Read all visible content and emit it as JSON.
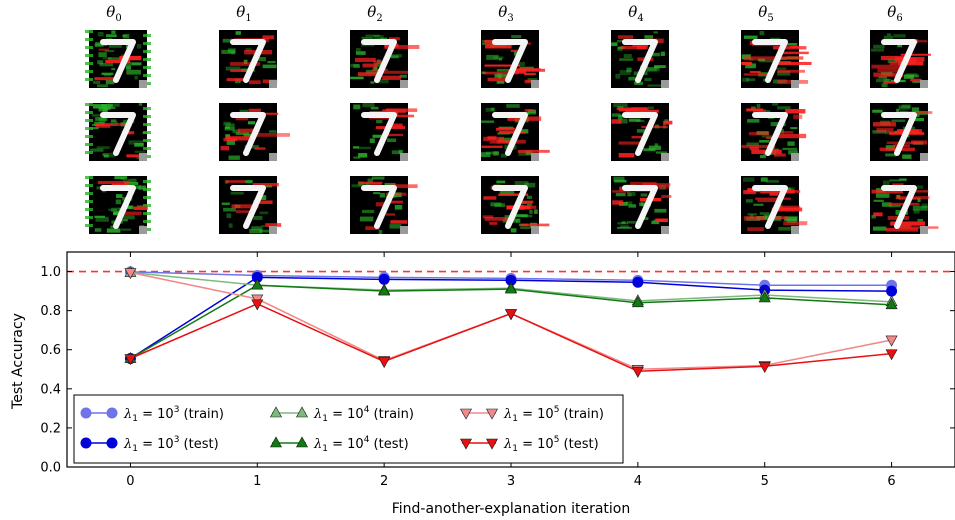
{
  "thumbnails": {
    "columns": [
      "θ0",
      "θ1",
      "θ2",
      "θ3",
      "θ4",
      "θ5",
      "θ6"
    ],
    "column_symbol": "θ",
    "column_subscripts": [
      "0",
      "1",
      "2",
      "3",
      "4",
      "5",
      "6"
    ],
    "rows": 3,
    "digit": "7",
    "description_colors": {
      "background": "#000000",
      "digit": "#f4f4f4",
      "positive": "#2bb52b",
      "negative": "#ff2020",
      "marker": "#9a9a9a"
    },
    "overlay_intensity": [
      [
        {
          "g": 0.9,
          "r": 0.15
        },
        {
          "g": 0.2,
          "r": 0.4
        },
        {
          "g": 0.5,
          "r": 0.6
        },
        {
          "g": 0.5,
          "r": 0.7
        },
        {
          "g": 0.6,
          "r": 0.3
        },
        {
          "g": 0.5,
          "r": 0.8
        },
        {
          "g": 0.4,
          "r": 0.8
        }
      ],
      [
        {
          "g": 0.9,
          "r": 0.15
        },
        {
          "g": 0.2,
          "r": 0.6
        },
        {
          "g": 0.2,
          "r": 0.5
        },
        {
          "g": 0.6,
          "r": 0.6
        },
        {
          "g": 0.4,
          "r": 0.6
        },
        {
          "g": 0.5,
          "r": 0.7
        },
        {
          "g": 0.6,
          "r": 0.6
        }
      ],
      [
        {
          "g": 0.9,
          "r": 0.15
        },
        {
          "g": 0.3,
          "r": 0.3
        },
        {
          "g": 0.3,
          "r": 0.5
        },
        {
          "g": 0.6,
          "r": 0.7
        },
        {
          "g": 0.6,
          "r": 0.6
        },
        {
          "g": 0.5,
          "r": 0.9
        },
        {
          "g": 0.5,
          "r": 0.7
        }
      ]
    ]
  },
  "chart_data": {
    "type": "line",
    "title": "",
    "xlabel": "Find-another-explanation iteration",
    "ylabel": "Test Accuracy",
    "x": [
      0,
      1,
      2,
      3,
      4,
      5,
      6
    ],
    "xlim": [
      -0.5,
      6.5
    ],
    "ylim": [
      0.0,
      1.1
    ],
    "xticks": [
      "0",
      "1",
      "2",
      "3",
      "4",
      "5",
      "6"
    ],
    "yticks": [
      "0.0",
      "0.2",
      "0.4",
      "0.6",
      "0.8",
      "1.0"
    ],
    "reference_line": {
      "y": 1.0,
      "color": "#ff3030",
      "style": "dashed"
    },
    "grid": false,
    "legend_position": "lower-left",
    "series": [
      {
        "name": "λ1 = 10^3 (train)",
        "lambda_base": "10",
        "lambda_exp": "3",
        "suffix": "(train)",
        "color": "#6f74e8",
        "marker": "circle",
        "values": [
          0.998,
          0.98,
          0.97,
          0.965,
          0.955,
          0.93,
          0.93
        ]
      },
      {
        "name": "λ1 = 10^3 (test)",
        "lambda_base": "10",
        "lambda_exp": "3",
        "suffix": "(test)",
        "color": "#0000d8",
        "marker": "circle",
        "values": [
          0.555,
          0.97,
          0.96,
          0.955,
          0.945,
          0.905,
          0.9
        ]
      },
      {
        "name": "λ1 = 10^4 (train)",
        "lambda_base": "10",
        "lambda_exp": "4",
        "suffix": "(train)",
        "color": "#7dba7d",
        "marker": "triangle-up",
        "values": [
          0.995,
          0.93,
          0.905,
          0.915,
          0.85,
          0.88,
          0.845
        ]
      },
      {
        "name": "λ1 = 10^4 (test)",
        "lambda_base": "10",
        "lambda_exp": "4",
        "suffix": "(test)",
        "color": "#127a12",
        "marker": "triangle-up",
        "values": [
          0.555,
          0.93,
          0.9,
          0.91,
          0.84,
          0.865,
          0.83
        ]
      },
      {
        "name": "λ1 = 10^5 (train)",
        "lambda_base": "10",
        "lambda_exp": "5",
        "suffix": "(train)",
        "color": "#f08a8a",
        "marker": "triangle-down",
        "values": [
          0.995,
          0.86,
          0.545,
          0.785,
          0.5,
          0.52,
          0.65
        ]
      },
      {
        "name": "λ1 = 10^5 (test)",
        "lambda_base": "10",
        "lambda_exp": "5",
        "suffix": "(test)",
        "color": "#e81010",
        "marker": "triangle-down",
        "values": [
          0.555,
          0.835,
          0.54,
          0.785,
          0.49,
          0.515,
          0.58
        ]
      }
    ]
  }
}
